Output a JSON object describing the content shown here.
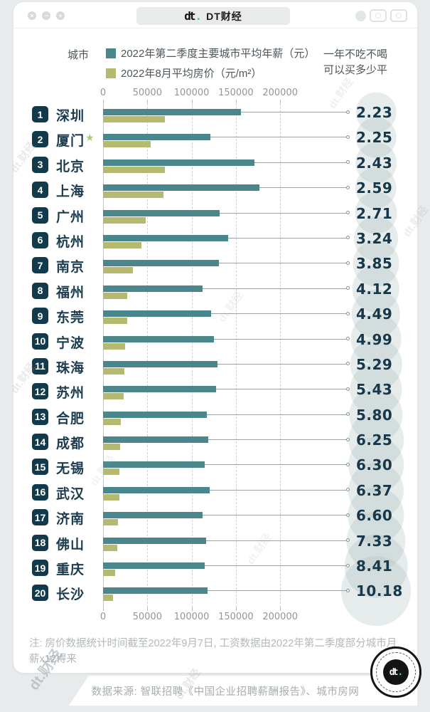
{
  "window": {
    "title": "DT财经",
    "logo_text": "dt",
    "controls": [
      {
        "name": "close",
        "glyph": "×"
      },
      {
        "name": "minimize",
        "glyph": "−"
      },
      {
        "name": "zoom",
        "glyph": "+"
      }
    ]
  },
  "header": {
    "col_city": "城市",
    "legend": [
      {
        "label": "2022年第二季度主要城市平均年薪（元）",
        "color": "#4a878d"
      },
      {
        "label": "2022年8月平均房价（元/m²）",
        "color": "#b6ba70"
      }
    ],
    "right_line1": "一年不吃不喝",
    "right_line2": "可以买多少平"
  },
  "chart_data": {
    "type": "bar",
    "orientation": "horizontal",
    "title": "一年不吃不喝可以买多少平",
    "x_ticks": [
      0,
      50000,
      100000,
      150000,
      200000
    ],
    "xlim": [
      0,
      250000
    ],
    "grid": "dashed-vertical",
    "categories": [
      "深圳",
      "厦门",
      "北京",
      "上海",
      "广州",
      "杭州",
      "南京",
      "福州",
      "东莞",
      "宁波",
      "珠海",
      "苏州",
      "合肥",
      "成都",
      "无锡",
      "武汉",
      "济南",
      "佛山",
      "重庆",
      "长沙"
    ],
    "ranks": [
      1,
      2,
      3,
      4,
      5,
      6,
      7,
      8,
      9,
      10,
      11,
      12,
      13,
      14,
      15,
      16,
      17,
      18,
      19,
      20
    ],
    "series": [
      {
        "name": "2022年第二季度主要城市平均年薪（元）",
        "color": "#4a878d",
        "values": [
          155700,
          121300,
          170600,
          176800,
          131500,
          141300,
          131200,
          112500,
          122000,
          125400,
          129200,
          127300,
          117200,
          118500,
          114500,
          120000,
          112000,
          116400,
          114600,
          117700
        ]
      },
      {
        "name": "2022年8月平均房价（元/m²）",
        "color": "#b6ba70",
        "values": [
          69800,
          53900,
          70200,
          68300,
          48500,
          43600,
          34100,
          27300,
          27200,
          25100,
          24400,
          23400,
          20200,
          19000,
          18200,
          18800,
          17000,
          15900,
          13600,
          11600
        ]
      }
    ],
    "ratio_label": "一年不吃不喝可以买多少平",
    "ratio_values": [
      "2.23",
      "2.25",
      "2.43",
      "2.59",
      "2.71",
      "3.24",
      "3.85",
      "4.12",
      "4.49",
      "4.99",
      "5.29",
      "5.43",
      "5.80",
      "6.25",
      "6.30",
      "6.37",
      "6.60",
      "7.33",
      "8.41",
      "10.18"
    ],
    "starred_city": "厦门",
    "star_glyph": "★"
  },
  "footer": {
    "note": "注: 房价数据统计时间截至2022年9月7日, 工资数据由2022年第二季度部分城市月薪x12得来",
    "source": "数据来源: 智联招聘《中国企业招聘薪酬报告》、城市房网"
  },
  "logo": {
    "text": "dt"
  },
  "watermark": "dt.财经",
  "colors": {
    "salary_bar": "#4a878d",
    "house_bar": "#b6ba70",
    "rank_badge": "#113a4c",
    "ratio_text": "#16384a",
    "circle_bg": "#acbebe",
    "star": "#a6cb7e",
    "background": "#e8ebec",
    "card": "#ffffff"
  }
}
